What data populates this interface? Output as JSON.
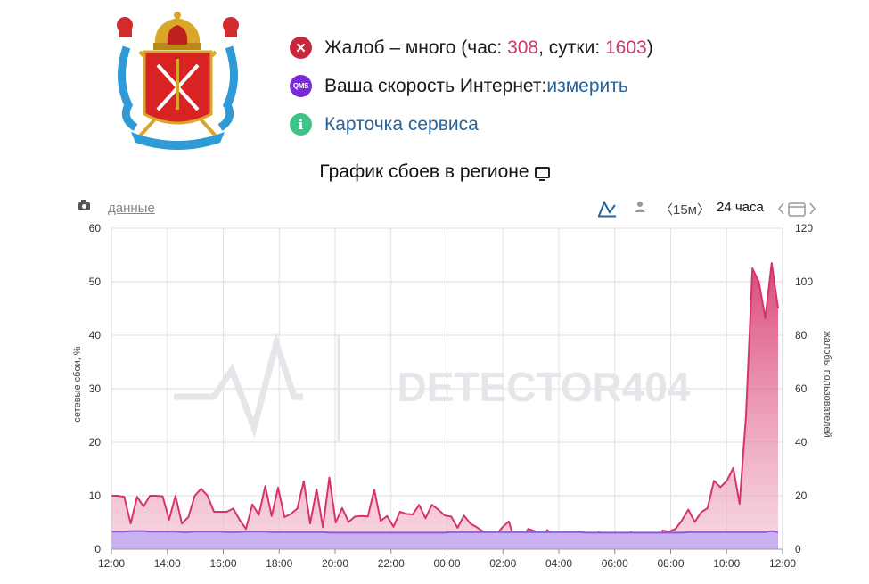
{
  "header": {
    "complaints": {
      "prefix": "Жалоб – много (час: ",
      "hour": "308",
      "mid": ", сутки: ",
      "day": "1603",
      "suffix": ")"
    },
    "speed": {
      "label": "Ваша скорость Интернет: ",
      "link": "измерить",
      "icon": "QMS"
    },
    "card": {
      "link": "Карточка сервиса"
    }
  },
  "chart_title": "График сбоев в регионе",
  "toolbar": {
    "data_link": "данные",
    "interval": "〈15м〉",
    "range": "24 часа"
  },
  "colors": {
    "complaints": "#d6336c",
    "complaints_fill": "#f2b8ca",
    "outage": "#8a5cd6",
    "outage_fill": "#c9b0ef",
    "link": "#27649a",
    "highlight": "#c53a66"
  },
  "watermark": "DETECTOR404",
  "chart_data": {
    "type": "area",
    "ylabel": "сетевые сбои, %",
    "y2label": "жалобы пользователей",
    "ylim": [
      0,
      60
    ],
    "y2lim": [
      0,
      120
    ],
    "yticks": [
      "0",
      "10",
      "20",
      "30",
      "40",
      "50",
      "60"
    ],
    "y2ticks": [
      "0",
      "20",
      "40",
      "60",
      "80",
      "100",
      "120"
    ],
    "xticks": [
      "12:00",
      "14:00",
      "16:00",
      "18:00",
      "20:00",
      "22:00",
      "00:00",
      "02:00",
      "04:00",
      "06:00",
      "08:00",
      "10:00",
      "12:00"
    ],
    "series": [
      {
        "axis": "left",
        "values": [
          10,
          10,
          9.8,
          4.8,
          9.8,
          8,
          10,
          10,
          9.9,
          5.5,
          10,
          4.8,
          6,
          10,
          11.3,
          10,
          7,
          7,
          7,
          7.6,
          5.5,
          3.8,
          8.4,
          6.4,
          11.8,
          6.2,
          11.5,
          6,
          6.6,
          7.6,
          12.7,
          4.8,
          11.2,
          4.1,
          13.4,
          5,
          7.7,
          5.1,
          6.1,
          6.2,
          6.1,
          11.1,
          5.3,
          6.2,
          4.2,
          7,
          6.6,
          6.5,
          8.3,
          5.8,
          8.3,
          7.4,
          6.3,
          6.1,
          4,
          6.3,
          4.8,
          4.1,
          3.3,
          0.6,
          2.6,
          4.1,
          5.2,
          1.3,
          1.5,
          3.8,
          3.4,
          1.7,
          3.6,
          2.2,
          1.5,
          1,
          1,
          0.1,
          1.2,
          1.2,
          3.2,
          2.7,
          1.6,
          0.4,
          2.2,
          3.2,
          2.7,
          2.3,
          1.8,
          0.7,
          3.5,
          3.3,
          3.8,
          5.4,
          7.4,
          5.1,
          6.9,
          7.7,
          12.8,
          11.6,
          12.8,
          15.2,
          8.5,
          25,
          52.5,
          50,
          43.2,
          53.5,
          45
        ]
      },
      {
        "axis": "left",
        "values": [
          3.3,
          3.3,
          3.3,
          3.4,
          3.4,
          3.4,
          3.3,
          3.3,
          3.3,
          3.3,
          3.3,
          3.2,
          3.2,
          3.3,
          3.3,
          3.3,
          3.3,
          3.3,
          3.2,
          3.2,
          3.2,
          3.3,
          3.3,
          3.3,
          3.3,
          3.2,
          3.2,
          3.2,
          3.2,
          3.2,
          3.2,
          3.2,
          3.2,
          3.2,
          3.1,
          3.1,
          3.1,
          3.1,
          3.1,
          3.1,
          3.1,
          3.1,
          3.1,
          3.1,
          3.1,
          3.1,
          3.1,
          3.1,
          3.1,
          3.1,
          3.1,
          3.1,
          3.1,
          3.2,
          3.2,
          3.2,
          3.2,
          3.2,
          3.2,
          3.2,
          3.2,
          3.2,
          3.2,
          3.2,
          3.2,
          3.2,
          3.2,
          3.2,
          3.2,
          3.2,
          3.2,
          3.2,
          3.2,
          3.2,
          3.1,
          3.1,
          3.1,
          3.1,
          3.1,
          3.1,
          3.1,
          3.1,
          3.1,
          3.1,
          3.1,
          3.1,
          3.1,
          3.1,
          3.1,
          3.1,
          3.2,
          3.2,
          3.2,
          3.2,
          3.2,
          3.2,
          3.2,
          3.2,
          3.2,
          3.2,
          3.2,
          3.2,
          3.2,
          3.4,
          3.2
        ]
      }
    ]
  }
}
